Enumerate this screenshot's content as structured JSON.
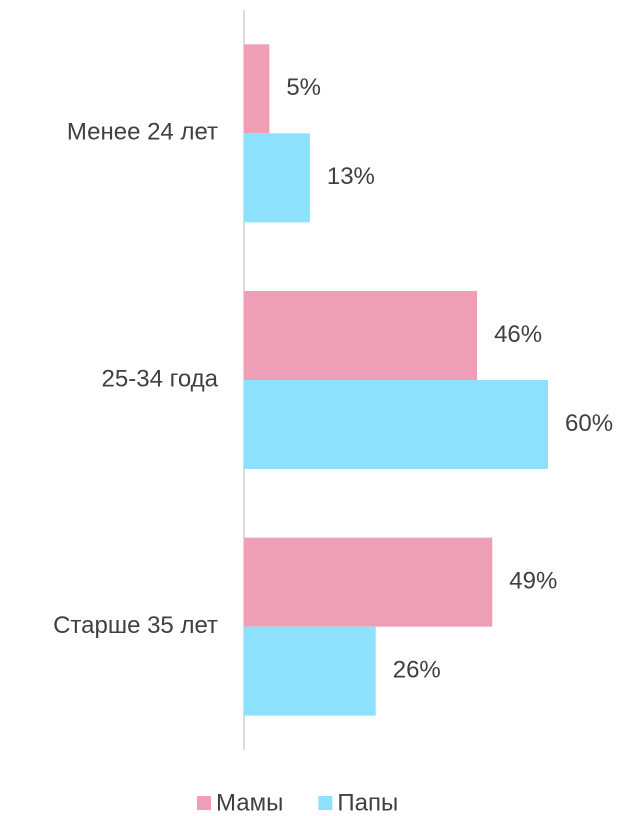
{
  "chart_data": {
    "type": "bar",
    "orientation": "horizontal",
    "categories": [
      "Менее 24 лет",
      "25-34 года",
      "Старше 35 лет"
    ],
    "series": [
      {
        "name": "Мамы",
        "color": "#ef9fb5",
        "values": [
          5,
          46,
          49
        ],
        "value_labels": [
          "5%",
          "46%",
          "49%"
        ]
      },
      {
        "name": "Папы",
        "color": "#8ee1fd",
        "values": [
          13,
          60,
          26
        ],
        "value_labels": [
          "13%",
          "60%",
          "26%"
        ]
      }
    ],
    "legend": "bottom"
  }
}
